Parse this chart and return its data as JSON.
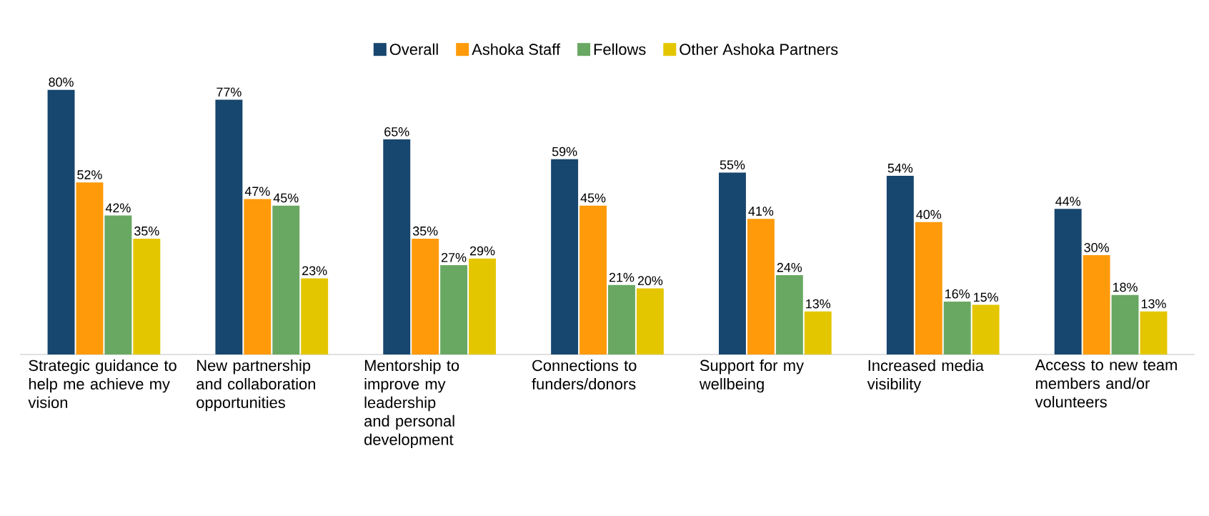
{
  "chart_data": {
    "type": "bar",
    "categories": [
      "Strategic guidance to help me achieve my vision",
      "New partnership and collaboration opportunities",
      "Mentorship to improve my leadership and personal development",
      "Connections to funders/donors",
      "Support for my wellbeing",
      "Increased media visibility",
      "Access to new team members and/or volunteers"
    ],
    "series": [
      {
        "name": "Overall",
        "color": "#17466e",
        "values": [
          80,
          77,
          65,
          59,
          55,
          54,
          44
        ],
        "value_labels": [
          "80%",
          "77%",
          "65%",
          "59%",
          "55%",
          "54%",
          "44%"
        ]
      },
      {
        "name": "Ashoka Staff",
        "color": "#ff9a0a",
        "values": [
          52,
          47,
          35,
          45,
          41,
          40,
          30
        ],
        "value_labels": [
          "52%",
          "47%",
          "35%",
          "45%",
          "41%",
          "40%",
          "30%"
        ]
      },
      {
        "name": "Fellows",
        "color": "#69a862",
        "values": [
          42,
          45,
          27,
          21,
          24,
          16,
          18
        ],
        "value_labels": [
          "42%",
          "45%",
          "27%",
          "21%",
          "24%",
          "16%",
          "18%"
        ]
      },
      {
        "name": "Other Ashoka Partners",
        "color": "#e3c600",
        "values": [
          35,
          23,
          29,
          20,
          13,
          15,
          13
        ],
        "value_labels": [
          "35%",
          "23%",
          "29%",
          "20%",
          "13%",
          "15%",
          "13%"
        ]
      }
    ],
    "legend": "top"
  }
}
